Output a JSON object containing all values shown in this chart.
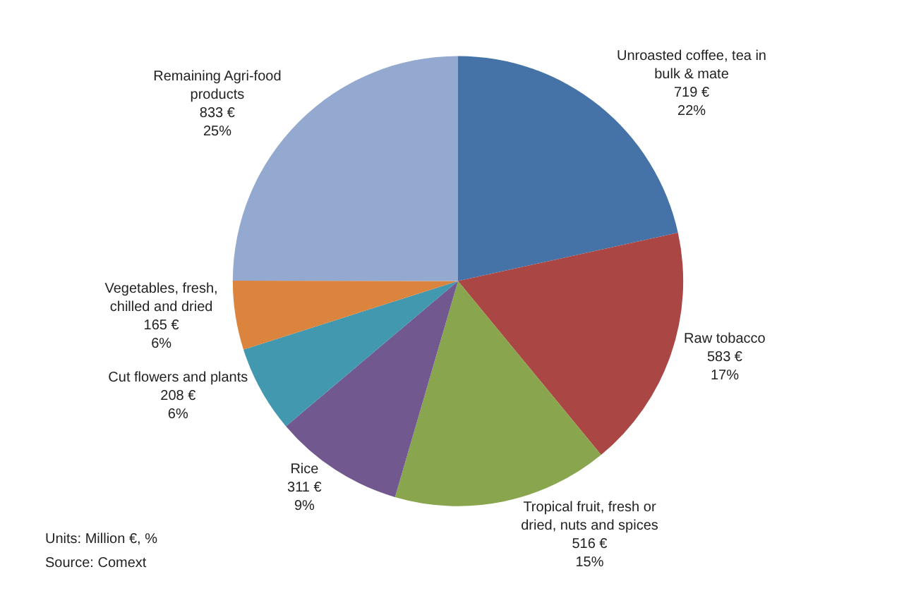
{
  "chart_data": {
    "type": "pie",
    "categories": [
      "Unroasted coffee, tea in bulk & mate",
      "Raw tobacco",
      "Tropical fruit, fresh or dried, nuts and spices",
      "Rice",
      "Cut flowers and plants",
      "Vegetables, fresh, chilled and dried",
      "Remaining Agri-food products"
    ],
    "values": [
      719,
      583,
      516,
      311,
      208,
      165,
      833
    ],
    "value_labels": [
      "719 €\n22%",
      "583 €\n17%",
      "516 €\n15%",
      "311 €\n9%",
      "208 €\n6%",
      "165 €\n6%",
      "833 €\n25%"
    ],
    "colors": [
      "#4572a7",
      "#aa4643",
      "#89a54e",
      "#71588f",
      "#4198af",
      "#db843d",
      "#93a9cf"
    ],
    "annotations": [
      "Units: Million €, %",
      "Source: Comext"
    ],
    "legend": false
  }
}
